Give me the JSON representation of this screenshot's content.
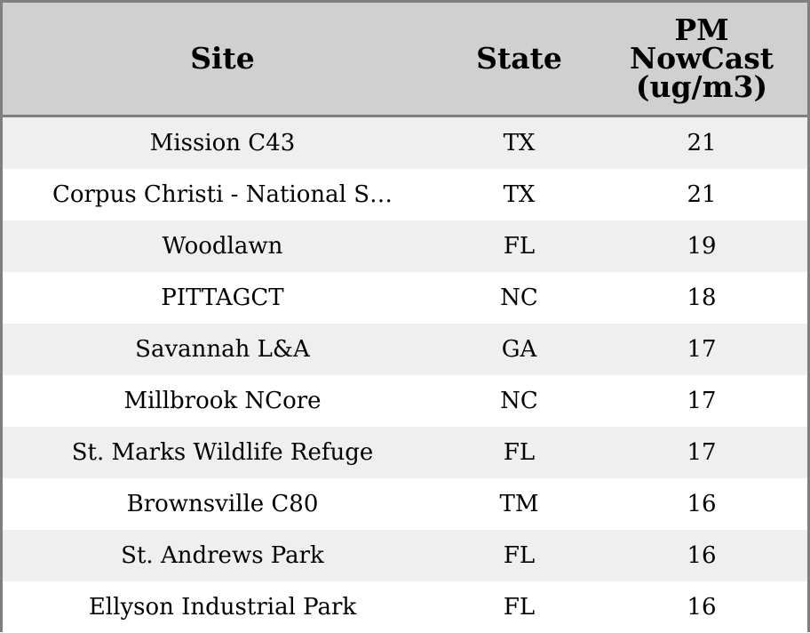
{
  "chart_data": {
    "type": "table",
    "columns": [
      "Site",
      "State",
      "PM NowCast (ug/m3)"
    ],
    "header_lines": {
      "site": [
        "Site"
      ],
      "state": [
        "State"
      ],
      "pm": [
        "PM",
        "NowCast",
        "(ug/m3)"
      ]
    },
    "rows": [
      {
        "site": "Mission C43",
        "state": "TX",
        "pm": 21
      },
      {
        "site": "Corpus Christi - National S…",
        "state": "TX",
        "pm": 21
      },
      {
        "site": "Woodlawn",
        "state": "FL",
        "pm": 19
      },
      {
        "site": "PITTAGCT",
        "state": "NC",
        "pm": 18
      },
      {
        "site": "Savannah L&A",
        "state": "GA",
        "pm": 17
      },
      {
        "site": "Millbrook NCore",
        "state": "NC",
        "pm": 17
      },
      {
        "site": "St. Marks Wildlife Refuge",
        "state": "FL",
        "pm": 17
      },
      {
        "site": "Brownsville C80",
        "state": "TM",
        "pm": 16
      },
      {
        "site": "St. Andrews Park",
        "state": "FL",
        "pm": 16
      },
      {
        "site": "Ellyson Industrial Park",
        "state": "FL",
        "pm": 16
      }
    ]
  },
  "colors": {
    "header_bg": "#d0d0d0",
    "row_alt_bg": "#efefef",
    "row_bg": "#ffffff",
    "border": "#7f7f7f"
  }
}
